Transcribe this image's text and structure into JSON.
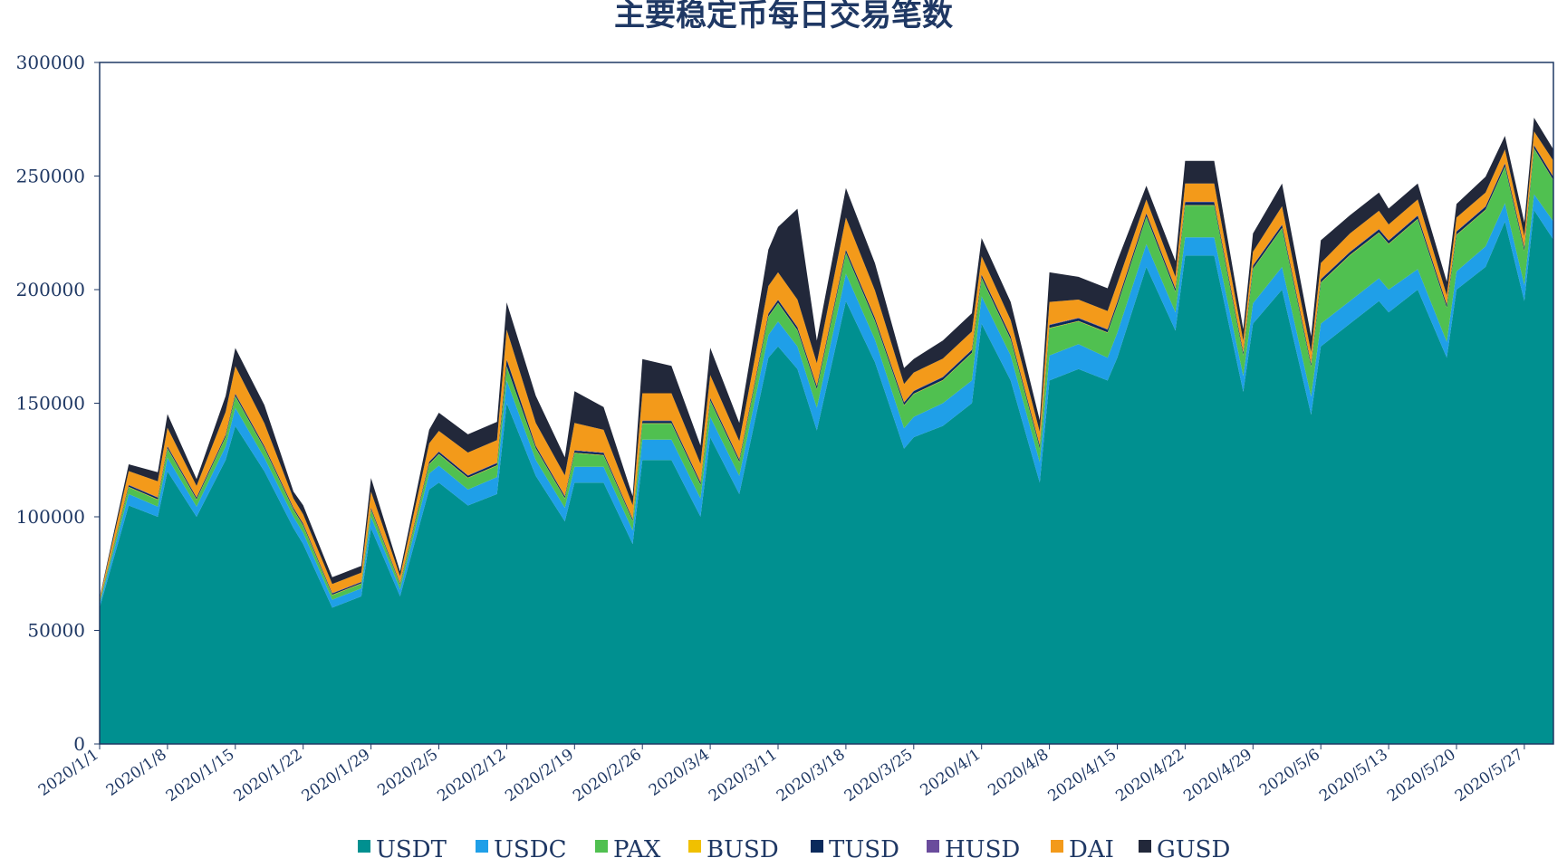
{
  "chart_data": {
    "type": "area",
    "stacked": true,
    "title": "主要稳定币每日交易笔数",
    "xlabel": "",
    "ylabel": "",
    "ylim": [
      0,
      300000
    ],
    "y_ticks": [
      0,
      50000,
      100000,
      150000,
      200000,
      250000,
      300000
    ],
    "x_tick_labels": [
      "2020/1/1",
      "2020/1/8",
      "2020/1/15",
      "2020/1/22",
      "2020/1/29",
      "2020/2/5",
      "2020/2/12",
      "2020/2/19",
      "2020/2/26",
      "2020/3/4",
      "2020/3/11",
      "2020/3/18",
      "2020/3/25",
      "2020/4/1",
      "2020/4/8",
      "2020/4/15",
      "2020/4/22",
      "2020/4/29",
      "2020/5/6",
      "2020/5/13",
      "2020/5/20",
      "2020/5/27"
    ],
    "legend_position": "bottom",
    "grid": false,
    "x": [
      "2020/1/1",
      "2020/1/4",
      "2020/1/7",
      "2020/1/8",
      "2020/1/11",
      "2020/1/14",
      "2020/1/15",
      "2020/1/18",
      "2020/1/21",
      "2020/1/22",
      "2020/1/25",
      "2020/1/28",
      "2020/1/29",
      "2020/2/1",
      "2020/2/4",
      "2020/2/5",
      "2020/2/8",
      "2020/2/11",
      "2020/2/12",
      "2020/2/15",
      "2020/2/18",
      "2020/2/19",
      "2020/2/22",
      "2020/2/25",
      "2020/2/26",
      "2020/2/29",
      "2020/3/3",
      "2020/3/4",
      "2020/3/7",
      "2020/3/10",
      "2020/3/11",
      "2020/3/13",
      "2020/3/15",
      "2020/3/18",
      "2020/3/21",
      "2020/3/24",
      "2020/3/25",
      "2020/3/28",
      "2020/3/31",
      "2020/4/1",
      "2020/4/4",
      "2020/4/7",
      "2020/4/8",
      "2020/4/11",
      "2020/4/14",
      "2020/4/15",
      "2020/4/18",
      "2020/4/21",
      "2020/4/22",
      "2020/4/25",
      "2020/4/28",
      "2020/4/29",
      "2020/5/2",
      "2020/5/5",
      "2020/5/6",
      "2020/5/9",
      "2020/5/12",
      "2020/5/13",
      "2020/5/16",
      "2020/5/19",
      "2020/5/20",
      "2020/5/23",
      "2020/5/25",
      "2020/5/27",
      "2020/5/28",
      "2020/5/30"
    ],
    "series": [
      {
        "name": "USDT",
        "color": "#009090",
        "values": [
          60000,
          105000,
          100000,
          120000,
          100000,
          125000,
          140000,
          120000,
          95000,
          88000,
          60000,
          65000,
          95000,
          65000,
          112000,
          115000,
          105000,
          110000,
          150000,
          118000,
          98000,
          115000,
          115000,
          88000,
          125000,
          125000,
          100000,
          135000,
          110000,
          170000,
          175000,
          165000,
          138000,
          195000,
          168000,
          130000,
          135000,
          140000,
          150000,
          185000,
          160000,
          115000,
          160000,
          165000,
          160000,
          170000,
          210000,
          182000,
          215000,
          215000,
          155000,
          185000,
          200000,
          145000,
          175000,
          185000,
          195000,
          190000,
          200000,
          170000,
          200000,
          210000,
          230000,
          195000,
          235000,
          222000
        ]
      },
      {
        "name": "USDC",
        "color": "#1f9fe8",
        "values": [
          1500,
          5000,
          4500,
          6000,
          4500,
          6000,
          8000,
          6000,
          5000,
          5000,
          3500,
          3500,
          5000,
          3000,
          7000,
          7500,
          7000,
          7500,
          10000,
          7000,
          6000,
          7000,
          7000,
          6000,
          9000,
          9000,
          8000,
          9000,
          8000,
          10000,
          11000,
          10000,
          10000,
          12000,
          10000,
          9000,
          9000,
          10000,
          10000,
          12000,
          11000,
          9000,
          11000,
          11000,
          10000,
          11000,
          10000,
          8000,
          8000,
          8000,
          7000,
          9000,
          10000,
          8000,
          10000,
          10000,
          10000,
          10000,
          9000,
          7000,
          8000,
          9000,
          8000,
          7000,
          7000,
          8000
        ]
      },
      {
        "name": "PAX",
        "color": "#50c050",
        "values": [
          1000,
          3000,
          3000,
          4000,
          3000,
          4000,
          5000,
          4000,
          3000,
          3000,
          2000,
          2000,
          3000,
          2000,
          4000,
          5000,
          5000,
          5000,
          6000,
          5000,
          4000,
          6000,
          5000,
          4000,
          7000,
          7000,
          6000,
          7000,
          6000,
          8000,
          8000,
          7000,
          8000,
          9000,
          8000,
          10000,
          10000,
          10000,
          12000,
          8000,
          7000,
          6000,
          12000,
          10000,
          11000,
          12000,
          12000,
          9000,
          14000,
          14000,
          9000,
          15000,
          17000,
          13000,
          18000,
          20000,
          20000,
          20000,
          22000,
          15000,
          16000,
          16000,
          16000,
          15000,
          20000,
          18000
        ]
      },
      {
        "name": "BUSD",
        "color": "#f0c000",
        "values": [
          100,
          200,
          200,
          200,
          200,
          200,
          200,
          200,
          200,
          200,
          200,
          200,
          200,
          200,
          200,
          200,
          200,
          200,
          200,
          200,
          200,
          200,
          200,
          200,
          200,
          200,
          200,
          200,
          200,
          200,
          200,
          200,
          200,
          200,
          200,
          200,
          200,
          200,
          200,
          200,
          200,
          200,
          200,
          200,
          200,
          200,
          200,
          200,
          200,
          200,
          200,
          200,
          200,
          200,
          200,
          200,
          200,
          200,
          200,
          200,
          200,
          200,
          200,
          200,
          200,
          200
        ]
      },
      {
        "name": "TUSD",
        "color": "#0a2a5c",
        "values": [
          300,
          700,
          700,
          800,
          700,
          800,
          900,
          800,
          700,
          700,
          500,
          500,
          700,
          500,
          900,
          900,
          900,
          900,
          3000,
          900,
          800,
          900,
          900,
          700,
          1000,
          1000,
          900,
          1000,
          900,
          1200,
          1200,
          1200,
          1200,
          1300,
          1200,
          1100,
          1100,
          1200,
          1200,
          1300,
          1200,
          1100,
          1200,
          1200,
          1200,
          1300,
          1300,
          1200,
          1300,
          1300,
          1100,
          1300,
          1300,
          1100,
          1300,
          1300,
          1300,
          1300,
          1300,
          1100,
          1300,
          1300,
          1300,
          1200,
          1300,
          1300
        ]
      },
      {
        "name": "HUSD",
        "color": "#6a4c9c",
        "values": [
          100,
          200,
          200,
          200,
          200,
          200,
          200,
          200,
          200,
          200,
          200,
          200,
          200,
          200,
          200,
          200,
          200,
          200,
          200,
          200,
          200,
          200,
          200,
          200,
          200,
          200,
          200,
          200,
          200,
          200,
          200,
          200,
          200,
          200,
          200,
          200,
          200,
          200,
          200,
          200,
          200,
          200,
          200,
          200,
          200,
          200,
          200,
          200,
          200,
          200,
          200,
          200,
          200,
          200,
          200,
          200,
          200,
          200,
          200,
          200,
          200,
          200,
          200,
          200,
          200,
          200
        ]
      },
      {
        "name": "DAI",
        "color": "#f39a1a",
        "values": [
          1000,
          6000,
          7000,
          8000,
          5000,
          10000,
          12000,
          10000,
          4000,
          4000,
          4000,
          4000,
          7000,
          3000,
          8000,
          9000,
          10000,
          10000,
          13000,
          10000,
          9000,
          12000,
          10000,
          6000,
          12000,
          12000,
          8000,
          10000,
          8000,
          12000,
          12000,
          12000,
          10000,
          14000,
          12000,
          8000,
          8000,
          8000,
          8000,
          8000,
          7000,
          6000,
          10000,
          8000,
          8000,
          8000,
          6000,
          5000,
          8000,
          8000,
          5000,
          6000,
          8000,
          5000,
          7000,
          8000,
          8000,
          7000,
          7000,
          4000,
          6000,
          6000,
          6000,
          5000,
          6000,
          7000
        ]
      },
      {
        "name": "GUSD",
        "color": "#22283a",
        "values": [
          500,
          3000,
          4000,
          6000,
          3000,
          7000,
          8000,
          8000,
          3000,
          4000,
          3000,
          3000,
          6000,
          2000,
          6000,
          8000,
          8000,
          8000,
          12000,
          12000,
          8000,
          14000,
          10000,
          4000,
          15000,
          12000,
          8000,
          12000,
          8000,
          16000,
          20000,
          40000,
          10000,
          13000,
          12000,
          7000,
          6000,
          8000,
          8000,
          8000,
          8000,
          5000,
          13000,
          10000,
          10000,
          10000,
          6000,
          7000,
          10000,
          10000,
          5000,
          8000,
          10000,
          7000,
          10000,
          8000,
          8000,
          7000,
          7000,
          6000,
          6000,
          7000,
          6000,
          6000,
          6000,
          5000
        ]
      }
    ]
  }
}
